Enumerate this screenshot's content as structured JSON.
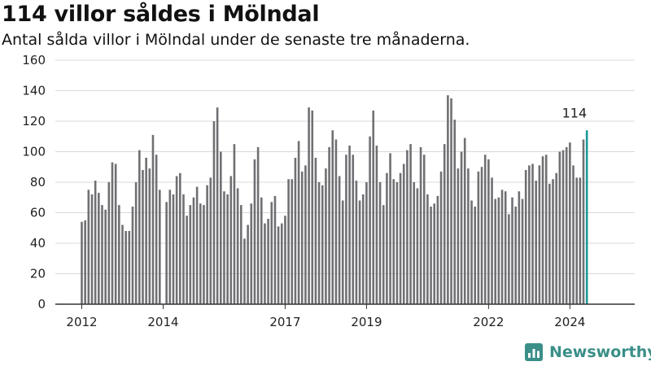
{
  "header": {
    "title": "114 villor såldes i Mölndal",
    "subtitle": "Antal sålda villor i Mölndal under de senaste tre månaderna."
  },
  "brand": {
    "name": "Newsworthy",
    "color": "#3a8f88",
    "icon": "newsworthy-bar-logo-icon"
  },
  "colors": {
    "bar": "#707074",
    "highlight": "#1a9a96",
    "grid": "#d9d9d9"
  },
  "chart_data": {
    "type": "bar",
    "title": "114 villor såldes i Mölndal",
    "subtitle": "Antal sålda villor i Mölndal under de senaste tre månaderna.",
    "xlabel": "",
    "ylabel": "",
    "ylim": [
      0,
      160
    ],
    "yticks": [
      0,
      20,
      40,
      60,
      80,
      100,
      120,
      140,
      160
    ],
    "xticks": [
      {
        "label": "2012",
        "index": 0
      },
      {
        "label": "2014",
        "index": 24
      },
      {
        "label": "2017",
        "index": 60
      },
      {
        "label": "2019",
        "index": 84
      },
      {
        "label": "2022",
        "index": 120
      },
      {
        "label": "2024",
        "index": 144
      }
    ],
    "grid": "horizontal",
    "legend": "none",
    "start": "2012-01",
    "frequency": "monthly",
    "values": [
      54,
      55,
      75,
      72,
      81,
      73,
      65,
      62,
      80,
      93,
      92,
      65,
      52,
      48,
      48,
      64,
      80,
      101,
      88,
      96,
      89,
      111,
      98,
      75,
      0,
      67,
      75,
      72,
      84,
      86,
      72,
      58,
      65,
      70,
      77,
      66,
      65,
      78,
      83,
      120,
      129,
      100,
      74,
      72,
      84,
      105,
      76,
      65,
      43,
      52,
      66,
      95,
      103,
      70,
      53,
      56,
      67,
      71,
      51,
      53,
      58,
      82,
      82,
      96,
      107,
      87,
      91,
      129,
      127,
      96,
      80,
      78,
      89,
      103,
      114,
      108,
      84,
      68,
      98,
      104,
      98,
      81,
      68,
      72,
      80,
      110,
      127,
      104,
      80,
      65,
      86,
      99,
      82,
      80,
      86,
      92,
      101,
      105,
      80,
      76,
      103,
      98,
      72,
      64,
      66,
      71,
      87,
      105,
      137,
      135,
      121,
      89,
      100,
      109,
      89,
      68,
      64,
      87,
      90,
      98,
      95,
      83,
      69,
      70,
      75,
      74,
      59,
      70,
      64,
      74,
      69,
      88,
      91,
      92,
      81,
      91,
      97,
      98,
      79,
      82,
      86,
      100,
      101,
      103,
      106,
      91,
      83,
      83,
      108,
      114
    ],
    "highlight_last": true,
    "annotation": "114"
  }
}
